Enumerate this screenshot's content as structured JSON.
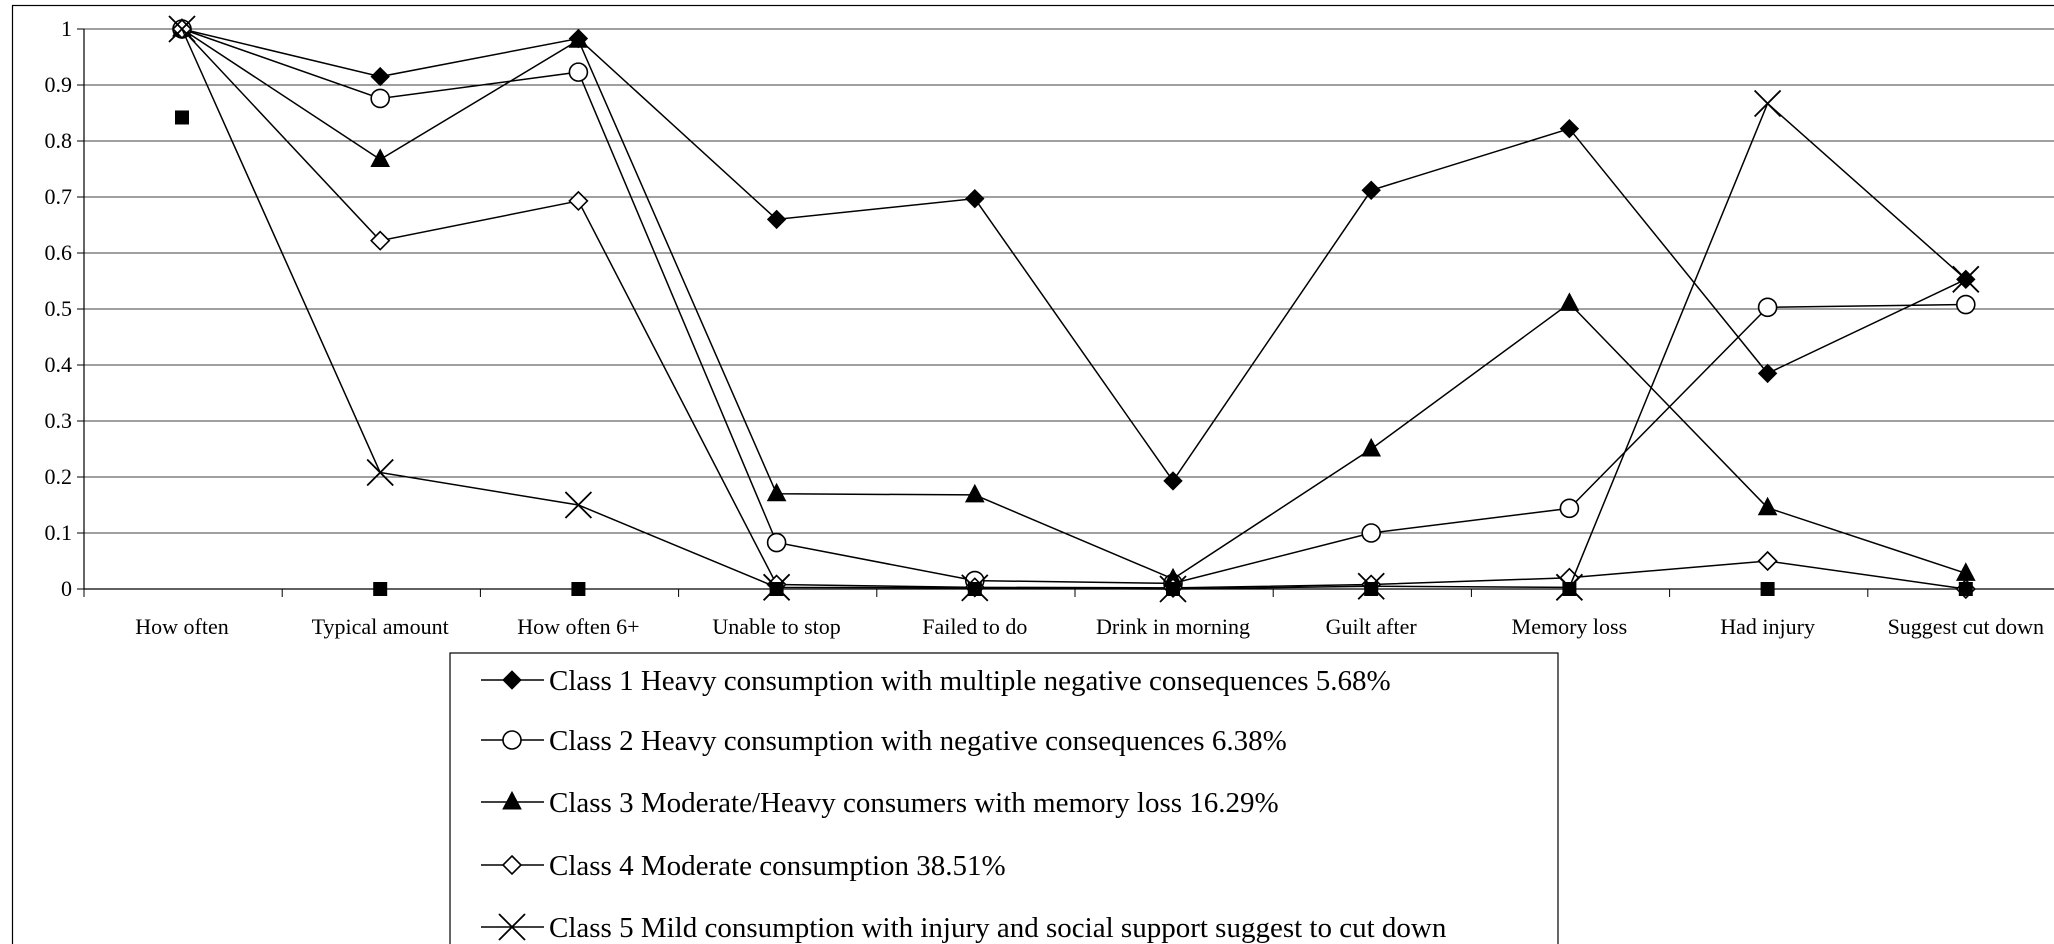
{
  "chart_data": {
    "type": "line",
    "title": "",
    "xlabel": "",
    "ylabel": "",
    "ylim": [
      0,
      1
    ],
    "yticks": [
      "0",
      "0.1",
      "0.2",
      "0.3",
      "0.4",
      "0.5",
      "0.6",
      "0.7",
      "0.8",
      "0.9",
      "1"
    ],
    "grid": true,
    "legend_position": "bottom",
    "categories": [
      "How often",
      "Typical amount",
      "How often 6+",
      "Unable to stop",
      "Failed to do",
      "Drink in morning",
      "Guilt after",
      "Memory loss",
      "Had injury",
      "Suggest cut down"
    ],
    "series": [
      {
        "name": "Class 1 Heavy consumption with multiple negative consequences 5.68%",
        "marker": "filled-diamond",
        "values": [
          1.0,
          0.915,
          0.983,
          0.66,
          0.697,
          0.193,
          0.712,
          0.822,
          0.385,
          0.553
        ]
      },
      {
        "name": "Class 2 Heavy consumption with negative consequences 6.38%",
        "marker": "open-circle",
        "values": [
          1.0,
          0.876,
          0.923,
          0.083,
          0.015,
          0.01,
          0.1,
          0.144,
          0.503,
          0.508
        ]
      },
      {
        "name": "Class 3 Moderate/Heavy consumers with memory loss 16.29%",
        "marker": "filled-triangle",
        "values": [
          1.0,
          0.767,
          0.98,
          0.17,
          0.168,
          0.018,
          0.25,
          0.51,
          0.145,
          0.028
        ]
      },
      {
        "name": "Class 4 Moderate consumption 38.51%",
        "marker": "open-diamond",
        "values": [
          1.0,
          0.622,
          0.693,
          0.008,
          0.003,
          0.002,
          0.008,
          0.02,
          0.05,
          0.0
        ]
      },
      {
        "name": "Class 5 Mild consumption with injury and social support suggest to cut down",
        "marker": "cross",
        "values": [
          1.0,
          0.208,
          0.15,
          0.003,
          0.002,
          0.0,
          0.005,
          0.003,
          0.867,
          0.553
        ]
      },
      {
        "name": "",
        "marker": "filled-square",
        "values": [
          0.842,
          0.0,
          0.0,
          0.0,
          0.0,
          0.0,
          0.0,
          0.0,
          0.0,
          0.0
        ]
      }
    ]
  }
}
